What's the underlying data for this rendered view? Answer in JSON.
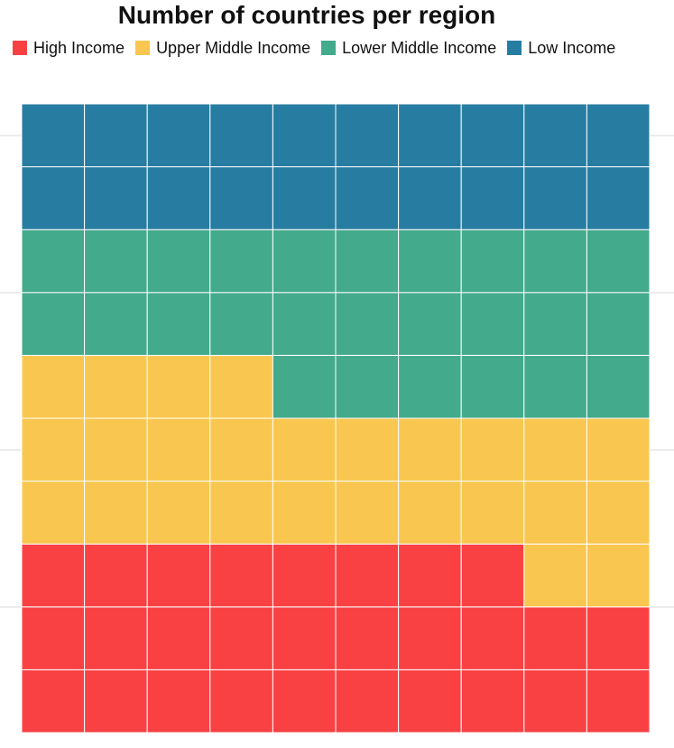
{
  "chart_data": {
    "type": "waffle",
    "title": "Number of countries per region",
    "legend_position": "top",
    "grid": true,
    "grid_columns": 10,
    "grid_rows": 10,
    "series": [
      {
        "name": "High Income",
        "values": [
          28
        ],
        "color": "#f94144"
      },
      {
        "name": "Upper Middle Income",
        "values": [
          26
        ],
        "color": "#f9c74f"
      },
      {
        "name": "Lower Middle Income",
        "values": [
          26
        ],
        "color": "#43aa8b"
      },
      {
        "name": "Low Income",
        "values": [
          20
        ],
        "color": "#277da1"
      }
    ]
  }
}
